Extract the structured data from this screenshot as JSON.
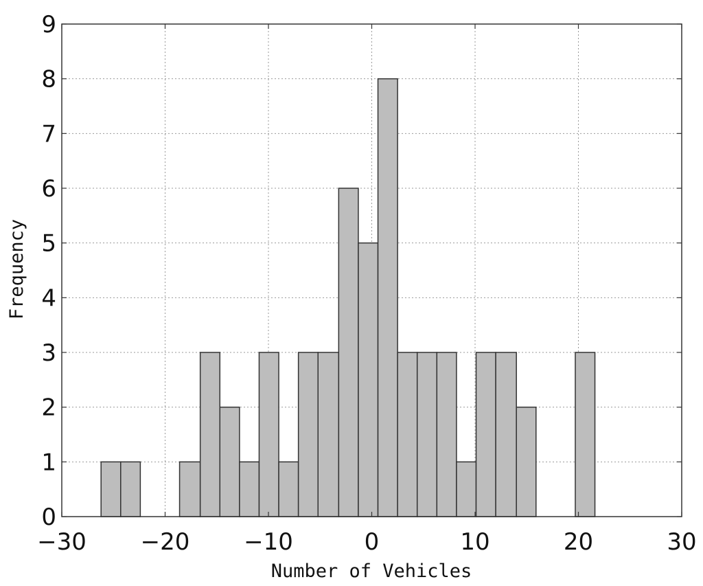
{
  "chart_data": {
    "type": "bar",
    "subtype": "histogram",
    "title": "",
    "xlabel": "Number of Vehicles",
    "ylabel": "Frequency",
    "xlim": [
      -30,
      30
    ],
    "ylim": [
      0,
      9
    ],
    "xticks": [
      -30,
      -20,
      -10,
      0,
      10,
      20,
      30
    ],
    "xtick_labels": [
      "−30",
      "−20",
      "−10",
      "0",
      "10",
      "20",
      "30"
    ],
    "yticks": [
      0,
      1,
      2,
      3,
      4,
      5,
      6,
      7,
      8,
      9
    ],
    "ytick_labels": [
      "0",
      "1",
      "2",
      "3",
      "4",
      "5",
      "6",
      "7",
      "8",
      "9"
    ],
    "grid": true,
    "bar_color": "#bdbdbd",
    "edge_color": "#333333",
    "bins": [
      {
        "x0": -26.2,
        "x1": -24.3,
        "count": 1
      },
      {
        "x0": -24.3,
        "x1": -22.4,
        "count": 1
      },
      {
        "x0": -22.4,
        "x1": -20.5,
        "count": 0
      },
      {
        "x0": -20.5,
        "x1": -18.6,
        "count": 0
      },
      {
        "x0": -18.6,
        "x1": -16.6,
        "count": 1
      },
      {
        "x0": -16.6,
        "x1": -14.7,
        "count": 3
      },
      {
        "x0": -14.7,
        "x1": -12.8,
        "count": 2
      },
      {
        "x0": -12.8,
        "x1": -10.9,
        "count": 1
      },
      {
        "x0": -10.9,
        "x1": -9.0,
        "count": 3
      },
      {
        "x0": -9.0,
        "x1": -7.1,
        "count": 1
      },
      {
        "x0": -7.1,
        "x1": -5.2,
        "count": 3
      },
      {
        "x0": -5.2,
        "x1": -3.2,
        "count": 3
      },
      {
        "x0": -3.2,
        "x1": -1.3,
        "count": 6
      },
      {
        "x0": -1.3,
        "x1": 0.6,
        "count": 5
      },
      {
        "x0": 0.6,
        "x1": 2.5,
        "count": 8
      },
      {
        "x0": 2.5,
        "x1": 4.4,
        "count": 3
      },
      {
        "x0": 4.4,
        "x1": 6.3,
        "count": 3
      },
      {
        "x0": 6.3,
        "x1": 8.2,
        "count": 3
      },
      {
        "x0": 8.2,
        "x1": 10.1,
        "count": 1
      },
      {
        "x0": 10.1,
        "x1": 12.0,
        "count": 3
      },
      {
        "x0": 12.0,
        "x1": 14.0,
        "count": 3
      },
      {
        "x0": 14.0,
        "x1": 15.9,
        "count": 2
      },
      {
        "x0": 15.9,
        "x1": 17.8,
        "count": 0
      },
      {
        "x0": 17.8,
        "x1": 19.7,
        "count": 0
      },
      {
        "x0": 19.7,
        "x1": 21.6,
        "count": 3
      }
    ]
  }
}
